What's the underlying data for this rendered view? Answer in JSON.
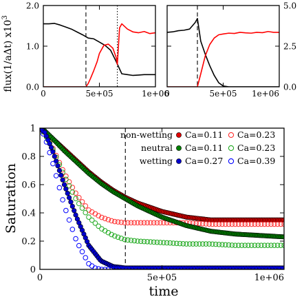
{
  "chart_data": [
    {
      "type": "line",
      "panel": "top-left",
      "xlim": [
        0,
        1000000
      ],
      "ylim": [
        0,
        2.0
      ],
      "x_ticks": [
        {
          "value": 0,
          "label": "0"
        },
        {
          "value": 500000,
          "label": "5e+05"
        },
        {
          "value": 1000000,
          "label": "1e+06"
        }
      ],
      "y_ticks": [
        {
          "value": 0,
          "label": "0.0"
        },
        {
          "value": 1.0,
          "label": "1.0"
        },
        {
          "value": 2.0,
          "label": "2.0"
        }
      ],
      "ylabel": {
        "main": "flux(1/aΔt) x10",
        "exponent": "3"
      },
      "vlines": [
        {
          "x": 380000,
          "style": "dashed"
        },
        {
          "x": 660000,
          "style": "dotted"
        }
      ],
      "series": [
        {
          "color": "#000000",
          "x": [
            0,
            50000,
            100000,
            150000,
            200000,
            250000,
            300000,
            350000,
            400000,
            450000,
            500000,
            550000,
            600000,
            650000,
            700000,
            750000,
            800000,
            850000,
            900000,
            950000,
            1000000
          ],
          "y": [
            1.55,
            1.55,
            1.56,
            1.52,
            1.47,
            1.42,
            1.35,
            1.28,
            1.2,
            1.18,
            1.1,
            1.02,
            0.9,
            0.62,
            0.32,
            0.3,
            0.28,
            0.29,
            0.3,
            0.3,
            0.3
          ]
        },
        {
          "color": "#ff0000",
          "x": [
            0,
            100000,
            200000,
            300000,
            380000,
            400000,
            420000,
            450000,
            480000,
            500000,
            540000,
            580000,
            620000,
            650000,
            660000,
            680000,
            700000,
            750000,
            800000,
            850000,
            900000,
            950000,
            1000000
          ],
          "y": [
            0,
            0,
            0,
            0,
            0,
            0.08,
            0.2,
            0.4,
            0.62,
            0.82,
            1.02,
            1.05,
            0.95,
            0.72,
            0.55,
            1.45,
            1.55,
            1.42,
            1.35,
            1.33,
            1.36,
            1.31,
            1.33
          ]
        }
      ]
    },
    {
      "type": "line",
      "panel": "top-right",
      "xlim": [
        0,
        1000000
      ],
      "ylim": [
        0,
        5.0
      ],
      "x_ticks": [
        {
          "value": 0,
          "label": "0"
        },
        {
          "value": 500000,
          "label": "5e+05"
        },
        {
          "value": 1000000,
          "label": "1e+06"
        }
      ],
      "y_ticks": [
        {
          "value": 0,
          "label": "0.0"
        },
        {
          "value": 2.5,
          "label": "2.5"
        },
        {
          "value": 5.0,
          "label": "5.0"
        }
      ],
      "vlines": [
        {
          "x": 270000,
          "style": "dashed"
        }
      ],
      "series": [
        {
          "color": "#000000",
          "x": [
            0,
            50000,
            100000,
            150000,
            200000,
            250000,
            270000,
            300000,
            340000,
            380000,
            420000,
            460000,
            500000,
            550000,
            600000,
            700000,
            800000,
            900000,
            1000000
          ],
          "y": [
            3.35,
            3.38,
            3.45,
            3.48,
            3.55,
            3.95,
            4.2,
            2.8,
            2.0,
            1.3,
            0.7,
            0.25,
            0.05,
            0,
            0,
            0,
            0,
            0,
            0
          ]
        },
        {
          "color": "#ff0000",
          "x": [
            0,
            100000,
            200000,
            260000,
            270000,
            300000,
            340000,
            380000,
            420000,
            460000,
            500000,
            550000,
            600000,
            650000,
            700000,
            750000,
            800000,
            850000,
            900000,
            950000,
            1000000
          ],
          "y": [
            0,
            0,
            0,
            0,
            0,
            0.8,
            1.9,
            2.6,
            3.0,
            3.2,
            3.25,
            3.3,
            3.28,
            3.35,
            3.32,
            3.3,
            3.35,
            3.33,
            3.4,
            3.35,
            3.35
          ]
        }
      ]
    },
    {
      "type": "scatter",
      "panel": "bottom",
      "xlabel": "time",
      "ylabel": "Saturation",
      "xlim": [
        0,
        1000000
      ],
      "ylim": [
        0,
        1
      ],
      "x_ticks": [
        {
          "value": 0,
          "label": "0"
        },
        {
          "value": 500000,
          "label": "5e+05"
        },
        {
          "value": 1000000,
          "label": "1e+06"
        }
      ],
      "y_ticks": [
        {
          "value": 0,
          "label": "0"
        },
        {
          "value": 0.2,
          "label": "0.2"
        },
        {
          "value": 0.4,
          "label": "0.4"
        },
        {
          "value": 0.6,
          "label": "0.6"
        },
        {
          "value": 0.8,
          "label": "0.8"
        },
        {
          "value": 1,
          "label": "1"
        }
      ],
      "vlines": [
        {
          "x": 350000,
          "style": "dashed"
        }
      ],
      "legend_placement": "top-right",
      "row_labels": [
        "non-wetting",
        "neutral",
        "wetting"
      ],
      "series": [
        {
          "name": "Ca=0.11",
          "color": "#e00000",
          "marker": "filled",
          "row": 0,
          "col": 0,
          "x": [
            0,
            20000,
            50000,
            100000,
            150000,
            200000,
            250000,
            300000,
            350000,
            400000,
            450000,
            500000,
            550000,
            600000,
            650000,
            700000,
            800000,
            900000,
            1000000
          ],
          "y": [
            1,
            0.98,
            0.93,
            0.85,
            0.77,
            0.69,
            0.62,
            0.56,
            0.51,
            0.47,
            0.44,
            0.41,
            0.39,
            0.37,
            0.36,
            0.35,
            0.35,
            0.35,
            0.35
          ]
        },
        {
          "name": "Ca=0.23",
          "color": "#ff3030",
          "marker": "open",
          "row": 0,
          "col": 1,
          "x": [
            0,
            20000,
            50000,
            100000,
            150000,
            200000,
            250000,
            300000,
            350000,
            400000,
            500000,
            600000,
            700000,
            800000,
            900000,
            1000000
          ],
          "y": [
            1,
            0.97,
            0.87,
            0.68,
            0.53,
            0.42,
            0.37,
            0.34,
            0.33,
            0.33,
            0.33,
            0.33,
            0.32,
            0.32,
            0.32,
            0.32
          ]
        },
        {
          "name": "Ca=0.11",
          "color": "#008000",
          "marker": "filled",
          "row": 1,
          "col": 0,
          "x": [
            0,
            20000,
            50000,
            100000,
            150000,
            200000,
            250000,
            300000,
            350000,
            400000,
            450000,
            500000,
            550000,
            600000,
            650000,
            700000,
            800000,
            900000,
            1000000
          ],
          "y": [
            1,
            0.98,
            0.93,
            0.84,
            0.76,
            0.68,
            0.61,
            0.55,
            0.5,
            0.45,
            0.41,
            0.37,
            0.34,
            0.31,
            0.29,
            0.27,
            0.25,
            0.24,
            0.23
          ]
        },
        {
          "name": "Ca=0.23",
          "color": "#22aa22",
          "marker": "open",
          "row": 1,
          "col": 1,
          "x": [
            0,
            20000,
            50000,
            100000,
            150000,
            200000,
            250000,
            300000,
            350000,
            400000,
            500000,
            600000,
            700000,
            800000,
            900000,
            1000000
          ],
          "y": [
            1,
            0.96,
            0.86,
            0.66,
            0.49,
            0.37,
            0.29,
            0.24,
            0.21,
            0.2,
            0.19,
            0.18,
            0.18,
            0.17,
            0.17,
            0.17
          ]
        },
        {
          "name": "Ca=0.27",
          "color": "#0000cc",
          "marker": "filled",
          "row": 2,
          "col": 0,
          "x": [
            0,
            20000,
            50000,
            100000,
            150000,
            200000,
            250000,
            300000,
            350000,
            400000,
            500000,
            700000,
            1000000
          ],
          "y": [
            1,
            0.97,
            0.85,
            0.6,
            0.37,
            0.17,
            0.06,
            0.02,
            0.01,
            0.01,
            0.01,
            0.01,
            0.01
          ]
        },
        {
          "name": "Ca=0.39",
          "color": "#0000ff",
          "marker": "open",
          "row": 2,
          "col": 1,
          "x": [
            0,
            20000,
            50000,
            100000,
            150000,
            200000,
            225000,
            250000,
            300000,
            400000,
            600000,
            800000,
            1000000
          ],
          "y": [
            1,
            0.94,
            0.77,
            0.45,
            0.2,
            0.04,
            0.01,
            0,
            0,
            0,
            0,
            0,
            0
          ]
        }
      ]
    }
  ]
}
